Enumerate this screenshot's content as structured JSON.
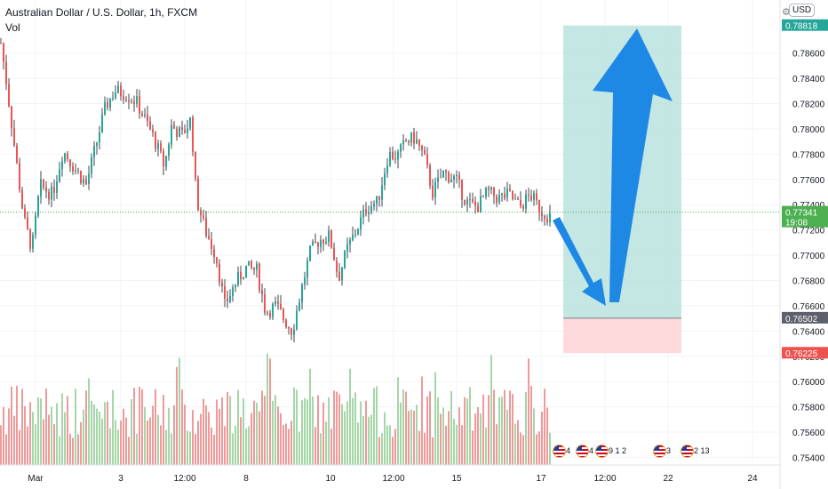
{
  "header": {
    "symbol_title": "Australian Dollar / U.S. Dollar, 1h, FXCM",
    "volume_label": "Vol",
    "currency_button": "USD"
  },
  "colors": {
    "up": "#26a69a",
    "down": "#ef5350",
    "volume_up": "#a5d6a7",
    "volume_down": "#ef9a9a",
    "target_zone": "#b2dfdb",
    "stop_zone": "#ffcdd2",
    "arrow": "#1e88e5",
    "target_price_bg": "#26a69a",
    "entry_price_bg": "#5d606b",
    "stop_price_bg": "#ef5350",
    "current_price_bg": "#4caf50",
    "candle_wick": "#131722"
  },
  "price_labels": {
    "target": "0.78818",
    "current": "0.77341",
    "countdown": "19:08",
    "entry": "0.76502",
    "stop": "0.76225"
  },
  "events": [
    {
      "label": "4"
    },
    {
      "label": "4 5"
    },
    {
      "label": "9 1 2"
    },
    {
      "label": "3"
    },
    {
      "label": "2 13"
    }
  ],
  "chart_data": {
    "type": "candlestick",
    "title": "Australian Dollar / U.S. Dollar, 1h, FXCM",
    "y_axis_ticks": [
      "0.78600",
      "0.78400",
      "0.78200",
      "0.78000",
      "0.77800",
      "0.77600",
      "0.77400",
      "0.77200",
      "0.77000",
      "0.76800",
      "0.76600",
      "0.76400",
      "0.76200",
      "0.76000",
      "0.75800",
      "0.75600",
      "0.75400"
    ],
    "x_axis_ticks": [
      "Mar",
      "3",
      "12:00",
      "8",
      "10",
      "12:00",
      "15",
      "17",
      "12:00",
      "22",
      "24"
    ],
    "ylim": [
      0.7534,
      0.7902
    ],
    "grid": true,
    "approx_path": [
      [
        0,
        0.7868
      ],
      [
        6,
        0.7838
      ],
      [
        16,
        0.7782
      ],
      [
        26,
        0.7728
      ],
      [
        35,
        0.7705
      ],
      [
        44,
        0.7755
      ],
      [
        58,
        0.7748
      ],
      [
        70,
        0.7783
      ],
      [
        82,
        0.777
      ],
      [
        96,
        0.7756
      ],
      [
        108,
        0.779
      ],
      [
        118,
        0.7818
      ],
      [
        128,
        0.783
      ],
      [
        140,
        0.7828
      ],
      [
        152,
        0.7822
      ],
      [
        162,
        0.7808
      ],
      [
        172,
        0.7793
      ],
      [
        184,
        0.777
      ],
      [
        192,
        0.7802
      ],
      [
        204,
        0.7795
      ],
      [
        214,
        0.7808
      ],
      [
        220,
        0.7745
      ],
      [
        230,
        0.772
      ],
      [
        242,
        0.77
      ],
      [
        252,
        0.766
      ],
      [
        264,
        0.7678
      ],
      [
        276,
        0.769
      ],
      [
        288,
        0.7688
      ],
      [
        298,
        0.7655
      ],
      [
        310,
        0.766
      ],
      [
        320,
        0.7648
      ],
      [
        328,
        0.764
      ],
      [
        338,
        0.7672
      ],
      [
        348,
        0.7702
      ],
      [
        358,
        0.7712
      ],
      [
        370,
        0.7715
      ],
      [
        380,
        0.7682
      ],
      [
        390,
        0.7705
      ],
      [
        400,
        0.772
      ],
      [
        412,
        0.7738
      ],
      [
        424,
        0.7742
      ],
      [
        436,
        0.778
      ],
      [
        446,
        0.7778
      ],
      [
        456,
        0.779
      ],
      [
        466,
        0.7793
      ],
      [
        476,
        0.7778
      ],
      [
        486,
        0.775
      ],
      [
        498,
        0.7765
      ],
      [
        512,
        0.776
      ],
      [
        524,
        0.7742
      ],
      [
        536,
        0.7738
      ],
      [
        548,
        0.775
      ],
      [
        560,
        0.7745
      ],
      [
        572,
        0.7748
      ],
      [
        584,
        0.7738
      ],
      [
        596,
        0.7748
      ],
      [
        608,
        0.7735
      ],
      [
        620,
        0.773
      ]
    ],
    "trade_setup": {
      "entry": 0.76502,
      "target": 0.78818,
      "stop": 0.76225,
      "current": 0.77341
    },
    "annotations": [
      "down-arrow to 0.76502 then up-arrow to 0.78818"
    ]
  }
}
